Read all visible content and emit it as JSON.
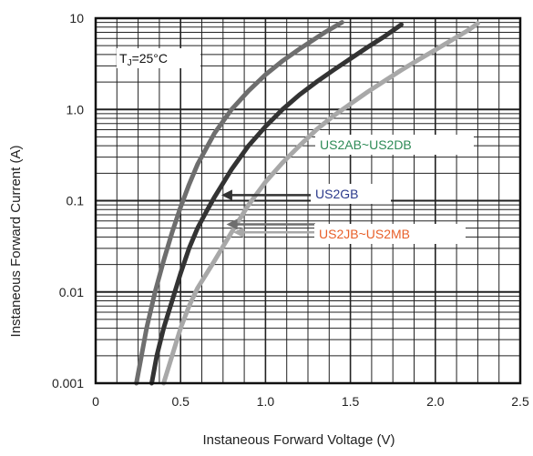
{
  "chart_data": {
    "type": "line",
    "title": "",
    "xlabel": "Instaneous Forward Voltage (V)",
    "ylabel": "Instaneous Forward Current (A)",
    "xlim": [
      0,
      2.5
    ],
    "ylim": [
      0.001,
      10
    ],
    "y_scale": "log",
    "grid": true,
    "x_ticks": [
      "0",
      "0.5",
      "1.0",
      "1.5",
      "2.0",
      "2.5"
    ],
    "y_ticks": [
      "0.001",
      "0.01",
      "0.1",
      "1.0",
      "10"
    ],
    "condition": {
      "prefix": "T",
      "subscript": "J",
      "suffix": "=25°C"
    },
    "series": [
      {
        "name": "US2AB~US2DB",
        "color": "#6e6e6e",
        "label_color": "#2e8b57",
        "x": [
          0.24,
          0.27,
          0.3,
          0.35,
          0.4,
          0.45,
          0.5,
          0.55,
          0.6,
          0.7,
          0.8,
          0.9,
          1.0,
          1.1,
          1.2,
          1.35,
          1.45
        ],
        "y": [
          0.001,
          0.002,
          0.004,
          0.01,
          0.022,
          0.045,
          0.085,
          0.15,
          0.25,
          0.55,
          1.0,
          1.6,
          2.4,
          3.4,
          4.6,
          7.0,
          9.0
        ]
      },
      {
        "name": "US2GB",
        "color": "#333333",
        "label_color": "#2b3a8c",
        "x": [
          0.33,
          0.36,
          0.4,
          0.45,
          0.5,
          0.55,
          0.6,
          0.65,
          0.7,
          0.8,
          0.9,
          1.0,
          1.1,
          1.2,
          1.3,
          1.4,
          1.5,
          1.6,
          1.7,
          1.8
        ],
        "y": [
          0.001,
          0.002,
          0.004,
          0.008,
          0.016,
          0.03,
          0.05,
          0.075,
          0.11,
          0.22,
          0.4,
          0.65,
          1.0,
          1.45,
          2.0,
          2.7,
          3.6,
          4.8,
          6.3,
          8.5
        ]
      },
      {
        "name": "US2JB~US2MB",
        "color": "#a8a8a8",
        "label_color": "#e8602a",
        "x": [
          0.4,
          0.45,
          0.5,
          0.55,
          0.6,
          0.7,
          0.8,
          0.9,
          1.0,
          1.1,
          1.2,
          1.3,
          1.4,
          1.5,
          1.6,
          1.7,
          1.8,
          1.9,
          2.0,
          2.1,
          2.2,
          2.25
        ],
        "y": [
          0.001,
          0.002,
          0.004,
          0.007,
          0.011,
          0.022,
          0.045,
          0.09,
          0.16,
          0.26,
          0.4,
          0.6,
          0.85,
          1.15,
          1.55,
          2.05,
          2.7,
          3.5,
          4.5,
          5.8,
          7.5,
          8.8
        ]
      }
    ],
    "annotations": [
      {
        "series": "US2AB~US2DB",
        "label": "US2AB~US2DB",
        "arrow_to": [
          0.77,
          0.055
        ]
      },
      {
        "series": "US2GB",
        "label": "US2GB",
        "arrow_to": [
          0.74,
          0.115
        ]
      },
      {
        "series": "US2JB~US2MB",
        "label": "US2JB~US2MB",
        "arrow_to": [
          0.81,
          0.045
        ]
      }
    ]
  }
}
